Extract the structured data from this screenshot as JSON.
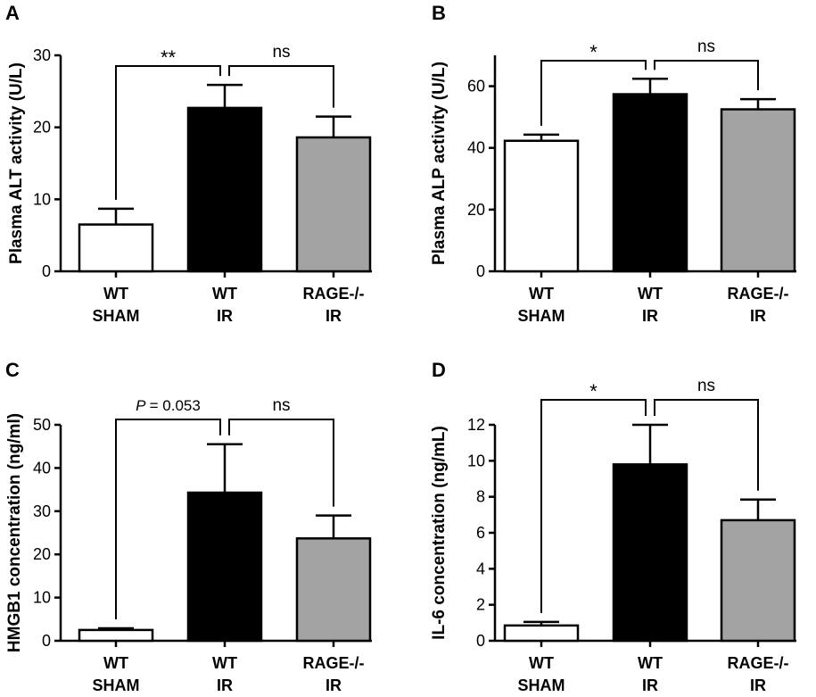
{
  "figure": {
    "panels": [
      "A",
      "B",
      "C",
      "D"
    ]
  },
  "chart_data": [
    {
      "type": "bar",
      "panel": "A",
      "ylabel": "Plasma ALT activity (U/L)",
      "ylim": [
        0,
        30
      ],
      "yticks": [
        0,
        10,
        20,
        30
      ],
      "categories": [
        [
          "WT",
          "SHAM"
        ],
        [
          "WT",
          "IR"
        ],
        [
          "RAGE-/-",
          "IR"
        ]
      ],
      "values": [
        6.5,
        22.7,
        18.6
      ],
      "errors": [
        2.2,
        3.2,
        2.9
      ],
      "colors": [
        "#ffffff",
        "#000000",
        "#a3a3a3"
      ],
      "significance": [
        {
          "from": 0,
          "to": 1,
          "label": "**"
        },
        {
          "from": 1,
          "to": 2,
          "label": "ns"
        }
      ]
    },
    {
      "type": "bar",
      "panel": "B",
      "ylabel": "Plasma ALP activity (U/L)",
      "ylim": [
        0,
        70
      ],
      "yticks": [
        0,
        20,
        40,
        60
      ],
      "categories": [
        [
          "WT",
          "SHAM"
        ],
        [
          "WT",
          "IR"
        ],
        [
          "RAGE-/-",
          "IR"
        ]
      ],
      "values": [
        42.3,
        57.4,
        52.5
      ],
      "errors": [
        2.0,
        5.0,
        3.3
      ],
      "colors": [
        "#ffffff",
        "#000000",
        "#a3a3a3"
      ],
      "significance": [
        {
          "from": 0,
          "to": 1,
          "label": "*"
        },
        {
          "from": 1,
          "to": 2,
          "label": "ns"
        }
      ]
    },
    {
      "type": "bar",
      "panel": "C",
      "ylabel": "HMGB1 concentration (ng/ml)",
      "ylim": [
        0,
        50
      ],
      "yticks": [
        0,
        10,
        20,
        30,
        40,
        50
      ],
      "categories": [
        [
          "WT",
          "SHAM"
        ],
        [
          "WT",
          "IR"
        ],
        [
          "RAGE-/-",
          "IR"
        ]
      ],
      "values": [
        2.5,
        34.3,
        23.7
      ],
      "errors": [
        0.4,
        11.2,
        5.3
      ],
      "colors": [
        "#ffffff",
        "#000000",
        "#a3a3a3"
      ],
      "significance": [
        {
          "from": 0,
          "to": 1,
          "label": "= 0.053",
          "prefix": "P"
        },
        {
          "from": 1,
          "to": 2,
          "label": "ns"
        }
      ]
    },
    {
      "type": "bar",
      "panel": "D",
      "ylabel": "IL-6 concentration (ng/mL)",
      "ylim": [
        0,
        12
      ],
      "yticks": [
        0,
        2,
        4,
        6,
        8,
        10,
        12
      ],
      "categories": [
        [
          "WT",
          "SHAM"
        ],
        [
          "WT",
          "IR"
        ],
        [
          "RAGE-/-",
          "IR"
        ]
      ],
      "values": [
        0.85,
        9.8,
        6.7
      ],
      "errors": [
        0.2,
        2.2,
        1.15
      ],
      "colors": [
        "#ffffff",
        "#000000",
        "#a3a3a3"
      ],
      "significance": [
        {
          "from": 0,
          "to": 1,
          "label": "*"
        },
        {
          "from": 1,
          "to": 2,
          "label": "ns"
        }
      ]
    }
  ]
}
